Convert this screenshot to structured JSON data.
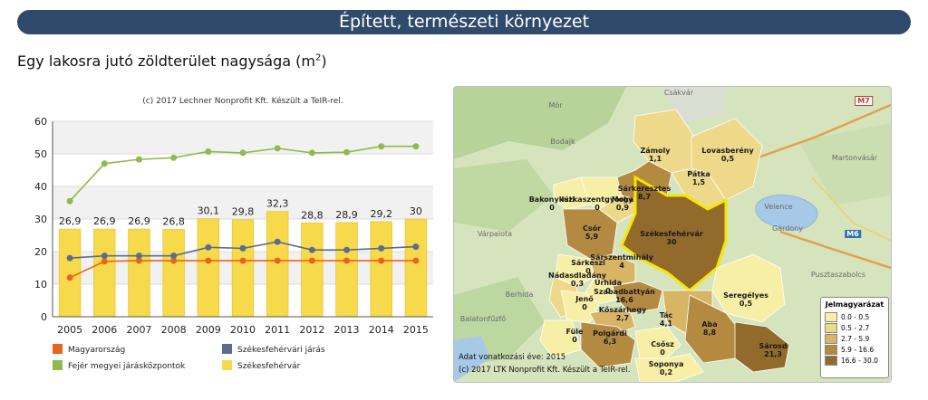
{
  "header": {
    "title": "Épített, természeti környezet"
  },
  "section": {
    "subtitle_prefix": "Egy lakosra jutó zöldterület nagysága (m",
    "subtitle_sup": "2",
    "subtitle_suffix": ")"
  },
  "chart_data": {
    "type": "bar",
    "credit": "(c) 2017 Lechner Nonprofit Kft. Készült a TeIR-rel.",
    "categories": [
      "2005",
      "2006",
      "2007",
      "2008",
      "2009",
      "2010",
      "2011",
      "2012",
      "2013",
      "2014",
      "2015"
    ],
    "ylim": [
      0,
      60
    ],
    "yticks": [
      0,
      10,
      20,
      30,
      40,
      50,
      60
    ],
    "bar_series": {
      "name": "Székesfehérvár",
      "color": "#f7d94c",
      "values": [
        26.9,
        26.9,
        26.9,
        26.8,
        30.1,
        29.8,
        32.3,
        28.8,
        28.9,
        29.2,
        30
      ],
      "labels": [
        "26,9",
        "26,9",
        "26,9",
        "26,8",
        "30,1",
        "29,8",
        "32,3",
        "28,8",
        "28,9",
        "29,2",
        "30"
      ]
    },
    "line_series": [
      {
        "name": "Magyarország",
        "color": "#e8641e",
        "values": [
          12,
          17,
          17.2,
          17.2,
          17.2,
          17.2,
          17.2,
          17.2,
          17.2,
          17.2,
          17.2
        ]
      },
      {
        "name": "Székesfehérvári járás",
        "color": "#5a6e8c",
        "values": [
          18,
          18.7,
          18.7,
          18.7,
          21.3,
          21,
          23,
          20.5,
          20.5,
          21,
          21.5
        ]
      },
      {
        "name": "Fejér megyei járásközpontok",
        "color": "#8fba4e",
        "values": [
          35.5,
          47,
          48.3,
          48.8,
          50.7,
          50.3,
          51.7,
          50.3,
          50.5,
          52.3,
          52.3
        ]
      }
    ],
    "legend": [
      {
        "name": "Magyarország",
        "color": "#e8641e"
      },
      {
        "name": "Székesfehérvári járás",
        "color": "#5a6e8c"
      },
      {
        "name": "Fejér megyei járásközpontok",
        "color": "#8fba4e"
      },
      {
        "name": "Székesfehérvár",
        "color": "#f7d94c"
      }
    ],
    "grid": true
  },
  "map": {
    "legend_title": "Jelmagyarázat",
    "legend": [
      {
        "range": "0.0 - 0.5",
        "color": "#f8efa6"
      },
      {
        "range": "0.5 - 2.7",
        "color": "#eed98a"
      },
      {
        "range": "2.7 - 5.9",
        "color": "#d7b565"
      },
      {
        "range": "5.9 - 16.6",
        "color": "#b48a41"
      },
      {
        "range": "16.6 - 30.0",
        "color": "#916a2c"
      }
    ],
    "reference_year": "Adat vonatkozási éve: 2015",
    "credit": "(c) 2017 LTK Nonprofit Kft. Készült a TeIR-rel.",
    "regions": [
      {
        "name": "Zámoly",
        "value": "1,1"
      },
      {
        "name": "Lovasberény",
        "value": "0,5"
      },
      {
        "name": "Pátka",
        "value": "1,5"
      },
      {
        "name": "Sárkeresztes",
        "value": "8,7"
      },
      {
        "name": "Bakonykúti",
        "value": "0"
      },
      {
        "name": "Iszkaszentgyörgy",
        "value": "0"
      },
      {
        "name": "Moha",
        "value": "0,9"
      },
      {
        "name": "Csór",
        "value": "5,9"
      },
      {
        "name": "Székesfehérvár",
        "value": "30"
      },
      {
        "name": "Sárszentmihály",
        "value": "4"
      },
      {
        "name": "Sárkeszi",
        "value": "0"
      },
      {
        "name": "Nádasdladány",
        "value": "0,3"
      },
      {
        "name": "Úrhida",
        "value": "0"
      },
      {
        "name": "Szabadbattyán",
        "value": "16,6"
      },
      {
        "name": "Jenő",
        "value": "0"
      },
      {
        "name": "Seregélyes",
        "value": "0,5"
      },
      {
        "name": "Kőszárhegy",
        "value": "2,7"
      },
      {
        "name": "Tác",
        "value": "4,1"
      },
      {
        "name": "Aba",
        "value": "8,8"
      },
      {
        "name": "Füle",
        "value": "0"
      },
      {
        "name": "Polgárdi",
        "value": "6,3"
      },
      {
        "name": "Csősz",
        "value": "0"
      },
      {
        "name": "Sárosd",
        "value": "21,3"
      },
      {
        "name": "Soponya",
        "value": "0,2"
      }
    ],
    "background_places": [
      "Csákvár",
      "Mór",
      "Bodajk",
      "Várpalota",
      "Berhida",
      "Velence",
      "Gárdony",
      "Martonvásár",
      "Pusztaszabolcs",
      "Balatonfűzfő"
    ],
    "road_labels": [
      "M7",
      "M6"
    ]
  }
}
